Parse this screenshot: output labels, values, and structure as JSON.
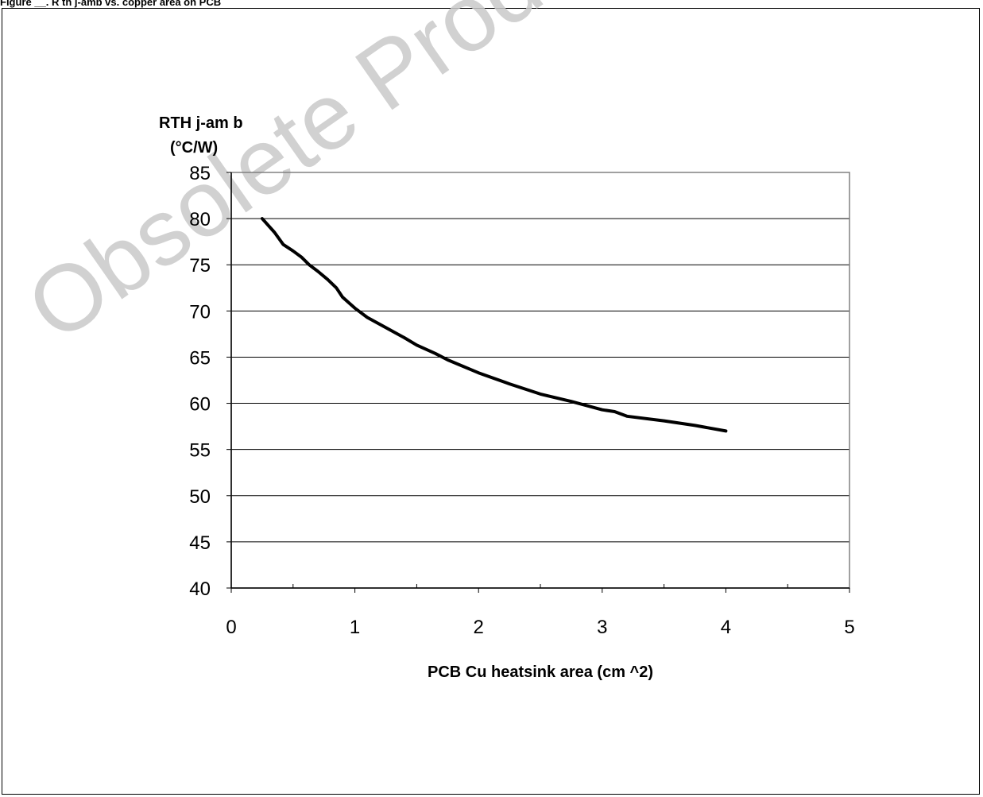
{
  "header": {
    "caption": "Figure __. R th j-amb vs. copper area on PCB"
  },
  "watermark": "Obsolete Product(s) - Obsolete",
  "chart_data": {
    "type": "line",
    "title": "",
    "xlabel": "PCB Cu heatsink area (cm ^2)",
    "ylabel_line1": "RTH j-am b",
    "ylabel_line2": "(°C/W)",
    "xlim": [
      0,
      5
    ],
    "ylim": [
      40,
      85
    ],
    "x_ticks": [
      0,
      1,
      2,
      3,
      4,
      5
    ],
    "y_ticks": [
      40,
      45,
      50,
      55,
      60,
      65,
      70,
      75,
      80,
      85
    ],
    "grid": "horizontal",
    "series": [
      {
        "x": [
          0.25,
          0.35,
          0.42,
          0.5,
          0.57,
          0.63,
          0.7,
          0.78,
          0.85,
          0.9,
          1.0,
          1.1,
          1.25,
          1.4,
          1.5,
          1.65,
          1.75,
          2.0,
          2.25,
          2.5,
          2.75,
          3.0,
          3.1,
          3.2,
          3.5,
          3.75,
          4.0
        ],
        "y": [
          80,
          78.5,
          77.2,
          76.5,
          75.8,
          75.0,
          74.3,
          73.4,
          72.5,
          71.5,
          70.3,
          69.3,
          68.2,
          67.1,
          66.3,
          65.4,
          64.7,
          63.3,
          62.1,
          61.0,
          60.2,
          59.3,
          59.1,
          58.6,
          58.1,
          57.6,
          57.0
        ]
      }
    ]
  }
}
